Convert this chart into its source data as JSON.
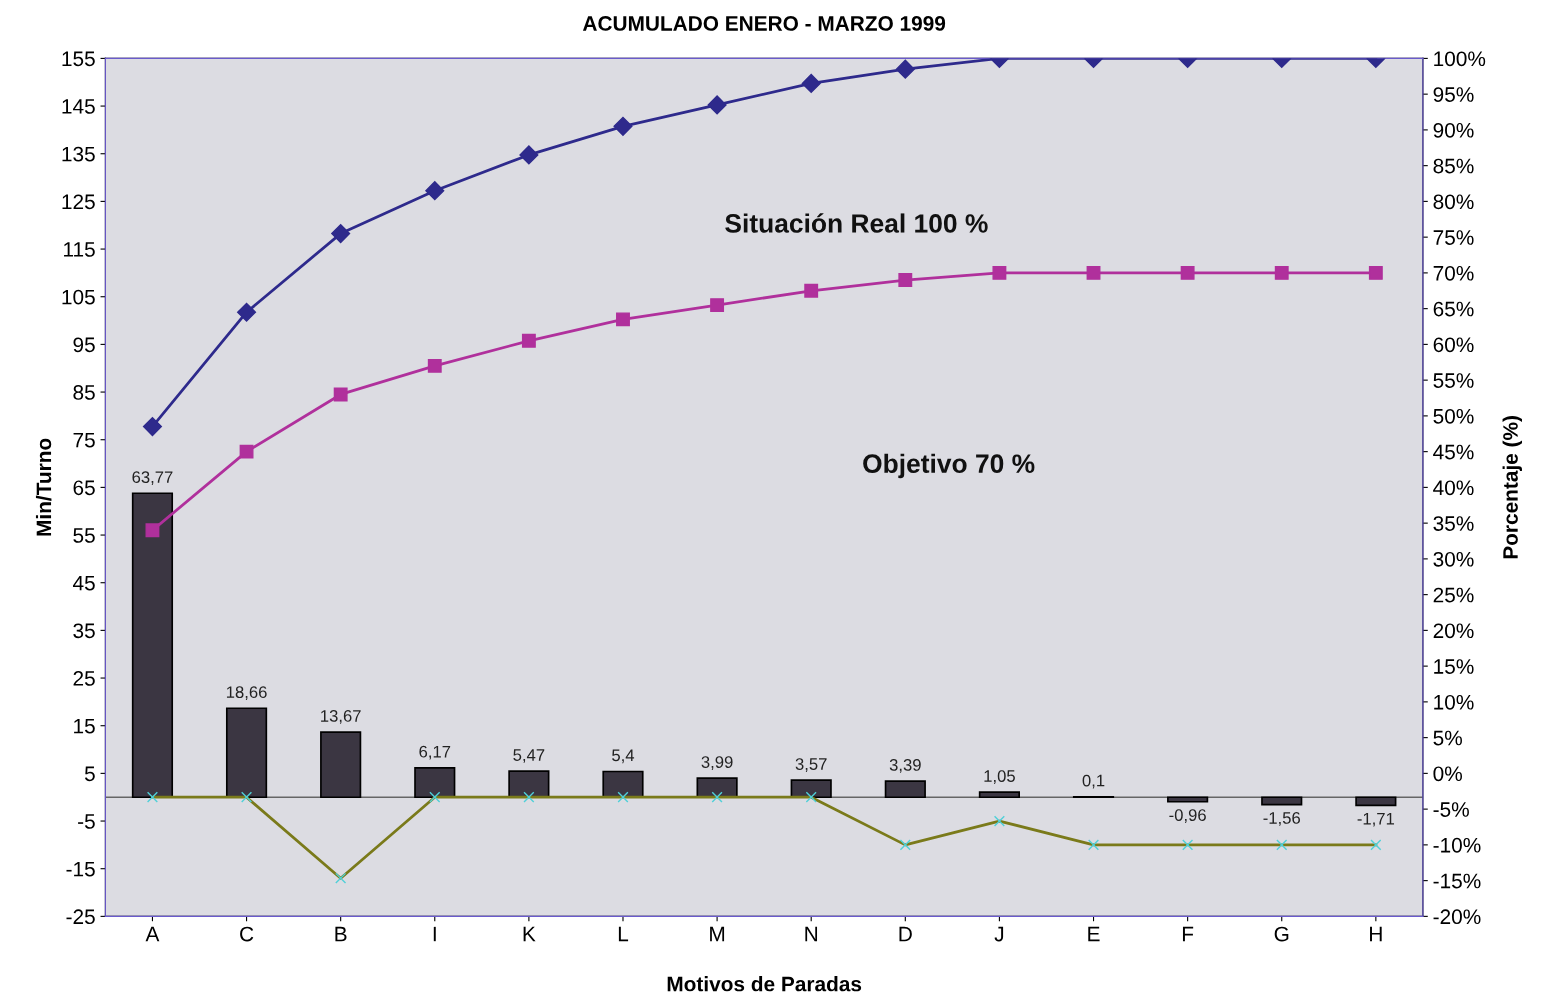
{
  "chart_data": {
    "type": "bar",
    "title": "ACUMULADO ENERO - MARZO 1999",
    "xlabel": "Motivos de Paradas",
    "ylabel": "Min/Turno",
    "y2label": "Porcentaje (%)",
    "categories": [
      "A",
      "C",
      "B",
      "I",
      "K",
      "L",
      "M",
      "N",
      "D",
      "J",
      "E",
      "F",
      "G",
      "H"
    ],
    "series": [
      {
        "color": "#3b3642",
        "values": [
          63.77,
          18.66,
          13.67,
          6.17,
          5.47,
          5.4,
          3.99,
          3.57,
          3.39,
          1.05,
          0.1,
          -0.96,
          -1.56,
          -1.71
        ],
        "value_labels": [
          "63,77",
          "18,66",
          "13,67",
          "6,17",
          "5,47",
          "5,4",
          "3,99",
          "3,57",
          "3,39",
          "1,05",
          "0,1",
          "-0,96",
          "-1,56",
          "-1,71"
        ]
      },
      {
        "type": "line",
        "axis": "y2",
        "color": "#2e2a8c",
        "marker": "diamond",
        "values": [
          48.5,
          64.5,
          75.5,
          81.5,
          86.5,
          90.5,
          93.5,
          96.5,
          98.5,
          100,
          100,
          100,
          100,
          100
        ]
      },
      {
        "type": "line",
        "axis": "y2",
        "color": "#b0309c",
        "marker": "square",
        "values": [
          34,
          45,
          53,
          57,
          60.5,
          63.5,
          65.5,
          67.5,
          69,
          70,
          70,
          70,
          70,
          70
        ]
      },
      {
        "type": "line",
        "color": "#7a7a1a",
        "marker": "cross",
        "values": [
          0,
          0,
          -17,
          0,
          0,
          0,
          0,
          0,
          -10,
          -5,
          -10,
          -10,
          -10,
          -10
        ]
      }
    ],
    "ylim": [
      -25,
      155
    ],
    "yticks": [
      -25,
      -15,
      -5,
      5,
      15,
      25,
      35,
      45,
      55,
      65,
      75,
      85,
      95,
      105,
      115,
      125,
      135,
      145,
      155
    ],
    "y2lim": [
      -20,
      100
    ],
    "y2ticks": [
      {
        "value": -20,
        "label": "-20%"
      },
      {
        "value": -15,
        "label": "-15%"
      },
      {
        "value": -10,
        "label": "-10%"
      },
      {
        "value": -5,
        "label": "-5%"
      },
      {
        "value": 0,
        "label": "0%"
      },
      {
        "value": 5,
        "label": "5%"
      },
      {
        "value": 10,
        "label": "10%"
      },
      {
        "value": 15,
        "label": "15%"
      },
      {
        "value": 20,
        "label": "20%"
      },
      {
        "value": 25,
        "label": "25%"
      },
      {
        "value": 30,
        "label": "30%"
      },
      {
        "value": 35,
        "label": "35%"
      },
      {
        "value": 40,
        "label": "40%"
      },
      {
        "value": 45,
        "label": "45%"
      },
      {
        "value": 50,
        "label": "50%"
      },
      {
        "value": 55,
        "label": "55%"
      },
      {
        "value": 60,
        "label": "60%"
      },
      {
        "value": 65,
        "label": "65%"
      },
      {
        "value": 70,
        "label": "70%"
      },
      {
        "value": 75,
        "label": "75%"
      },
      {
        "value": 80,
        "label": "80%"
      },
      {
        "value": 85,
        "label": "85%"
      },
      {
        "value": 90,
        "label": "90%"
      },
      {
        "value": 95,
        "label": "95%"
      },
      {
        "value": 100,
        "label": "100%"
      }
    ],
    "annotations": [
      "Situación Real 100 %",
      "Objetivo 70 %"
    ],
    "grid": false
  }
}
